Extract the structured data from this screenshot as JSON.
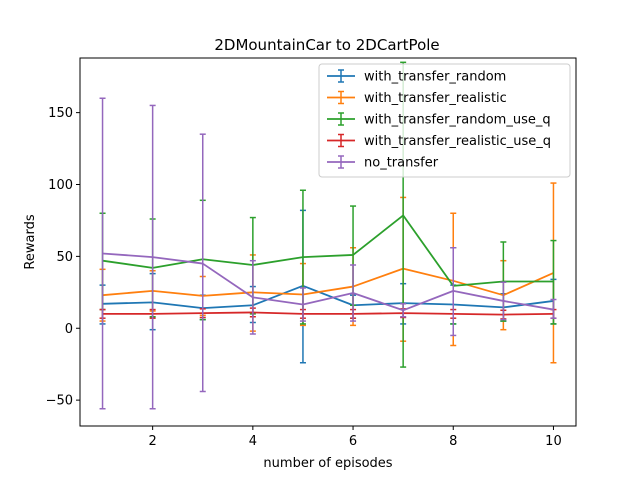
{
  "chart_data": {
    "type": "line",
    "title": "2DMountainCar to 2DCartPole",
    "xlabel": "number of episodes",
    "ylabel": "Rewards",
    "xlim": [
      0.55,
      10.45
    ],
    "ylim": [
      -68,
      188
    ],
    "xticks": [
      2,
      4,
      6,
      8,
      10
    ],
    "yticks": [
      -50,
      0,
      50,
      100,
      150
    ],
    "grid": false,
    "legend_position": "upper-right",
    "x": [
      1,
      2,
      3,
      4,
      5,
      6,
      7,
      8,
      9,
      10
    ],
    "series": [
      {
        "name": "with_transfer_random",
        "color": "#1f77b4",
        "values": [
          17,
          18,
          14,
          16,
          29.5,
          16,
          17.5,
          16.5,
          14.5,
          19
        ],
        "err_low": [
          3,
          -1,
          6,
          4,
          -24,
          7,
          3,
          3,
          5,
          3
        ],
        "err_high": [
          30,
          38,
          23,
          29,
          82,
          23,
          31,
          30,
          24,
          34
        ]
      },
      {
        "name": "with_transfer_realistic",
        "color": "#ff7f0e",
        "values": [
          23,
          26,
          22.5,
          25,
          23.5,
          29,
          41.5,
          33,
          23,
          38.5
        ],
        "err_low": [
          5,
          12,
          9,
          -2,
          2,
          2,
          -9,
          -12,
          -1,
          -24
        ],
        "err_high": [
          41,
          40,
          36,
          51,
          45,
          56,
          91,
          80,
          47,
          101
        ]
      },
      {
        "name": "with_transfer_random_use_q",
        "color": "#2ca02c",
        "values": [
          47,
          42,
          48,
          44,
          49.5,
          51,
          78.5,
          29.5,
          32.5,
          32.5
        ],
        "err_low": [
          13,
          8,
          6,
          10,
          3,
          16,
          -27,
          3,
          5,
          3
        ],
        "err_high": [
          80,
          76,
          89,
          77,
          96,
          85,
          185,
          56,
          60,
          61
        ]
      },
      {
        "name": "with_transfer_realistic_use_q",
        "color": "#d62728",
        "values": [
          10,
          10,
          10.5,
          11,
          10,
          10,
          10.5,
          10,
          9.5,
          10
        ],
        "err_low": [
          7,
          7,
          7.5,
          8,
          7,
          7,
          7.5,
          7,
          6.5,
          7
        ],
        "err_high": [
          13,
          13,
          13.5,
          14,
          13,
          13,
          13.5,
          13,
          12.5,
          13
        ]
      },
      {
        "name": "no_transfer",
        "color": "#9467bd",
        "values": [
          52,
          49.5,
          45,
          21.5,
          16.5,
          24.5,
          12.5,
          26,
          19,
          13
        ],
        "err_low": [
          -56,
          -56,
          -44,
          -4,
          5,
          5,
          8,
          -5,
          6,
          7
        ],
        "err_high": [
          160,
          155,
          135,
          47,
          28,
          44,
          17,
          56,
          32,
          20
        ]
      }
    ]
  }
}
